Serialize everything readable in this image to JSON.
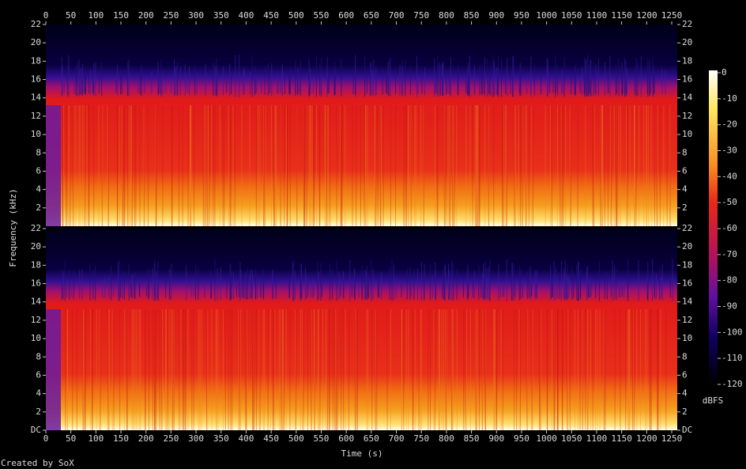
{
  "chart_data": [
    {
      "type": "spectrogram",
      "ylabel": "Frequency (kHz)",
      "xlim": [
        0,
        1261
      ],
      "xticks": [
        0,
        50,
        100,
        150,
        200,
        250,
        300,
        350,
        400,
        450,
        500,
        550,
        600,
        650,
        700,
        750,
        800,
        850,
        900,
        950,
        1000,
        1050,
        1100,
        1150,
        1200,
        1250
      ],
      "ylim": [
        0,
        22
      ],
      "yticks": [
        2,
        4,
        6,
        8,
        10,
        12,
        14,
        16,
        18,
        20,
        22
      ]
    },
    {
      "type": "spectrogram",
      "xlabel": "Time (s)",
      "xlim": [
        0,
        1261
      ],
      "xticks": [
        0,
        50,
        100,
        150,
        200,
        250,
        300,
        350,
        400,
        450,
        500,
        550,
        600,
        650,
        700,
        750,
        800,
        850,
        900,
        950,
        1000,
        1050,
        1100,
        1150,
        1200,
        1250
      ],
      "ylim": [
        0,
        22
      ],
      "yticks": [
        {
          "value": 0,
          "label": "DC"
        },
        2,
        4,
        6,
        8,
        10,
        12,
        14,
        16,
        18,
        20,
        22
      ]
    }
  ],
  "colorbar": {
    "label": "dBFS",
    "lim": [
      -120,
      0
    ],
    "ticks": [
      0,
      -10,
      -20,
      -30,
      -40,
      -50,
      -60,
      -70,
      -80,
      -90,
      -100,
      -110,
      -120
    ]
  },
  "footer": "Created by SoX"
}
